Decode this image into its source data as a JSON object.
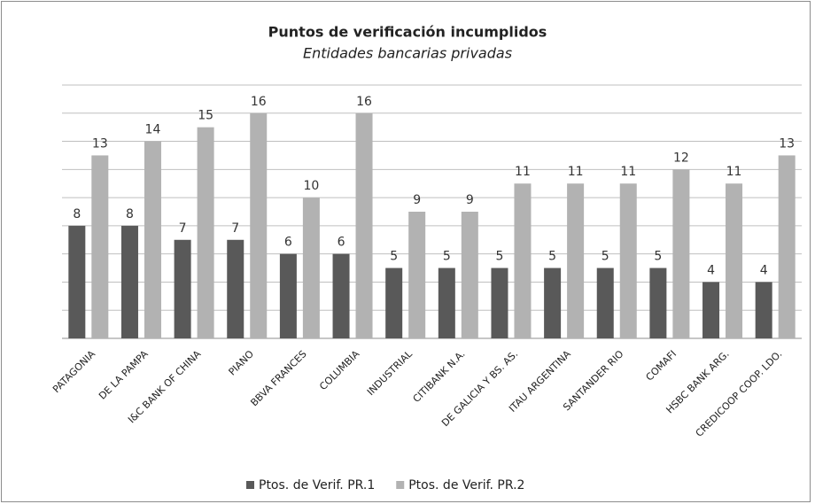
{
  "chart_data": {
    "type": "bar",
    "title": "Puntos de verificación incumplidos",
    "subtitle": "Entidades bancarias privadas",
    "categories": [
      "PATAGONIA",
      "DE LA PAMPA",
      "I&C BANK OF CHINA",
      "PIANO",
      "BBVA FRANCES",
      "COLUMBIA",
      "INDUSTRIAL",
      "CITIBANK N.A.",
      "DE GALICIA Y BS. AS.",
      "ITAU ARGENTINA",
      "SANTANDER RIO",
      "COMAFI",
      "HSBC BANK ARG.",
      "CREDICOOP COOP. LDO."
    ],
    "series": [
      {
        "name": "Ptos. de Verif. PR.1",
        "color": "#595959",
        "values": [
          8,
          8,
          7,
          7,
          6,
          6,
          5,
          5,
          5,
          5,
          5,
          5,
          4,
          4
        ]
      },
      {
        "name": "Ptos. de Verif. PR.2",
        "color": "#b2b2b2",
        "values": [
          13,
          14,
          15,
          16,
          10,
          16,
          9,
          9,
          11,
          11,
          11,
          12,
          11,
          13
        ]
      }
    ],
    "ylim": [
      0,
      18
    ],
    "yticks": [
      0,
      2,
      4,
      6,
      8,
      10,
      12,
      14,
      16,
      18
    ],
    "grid": true,
    "legend": "bottom"
  }
}
